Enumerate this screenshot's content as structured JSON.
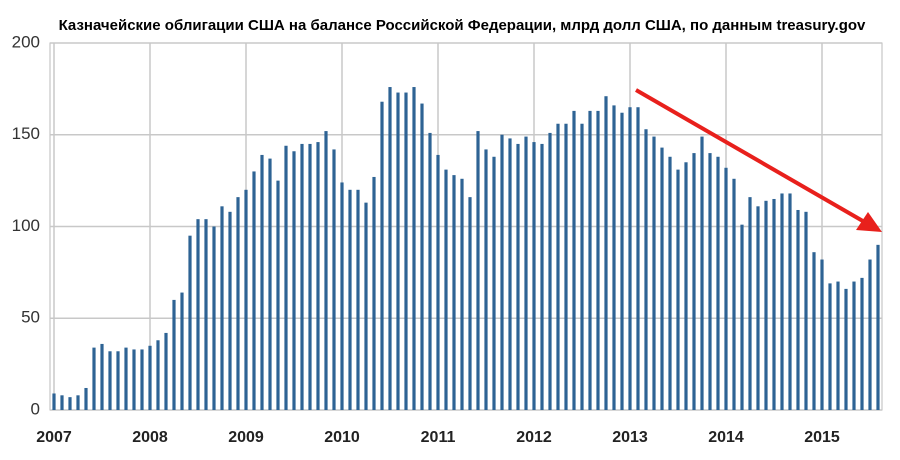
{
  "chart_data": {
    "type": "bar",
    "title": "Казначейские облигации США на балансе Российской Федерации, млрд долл США, по данным treasury.gov",
    "categories": [
      "2007",
      null,
      null,
      null,
      null,
      null,
      null,
      null,
      null,
      null,
      null,
      null,
      "2008",
      null,
      null,
      null,
      null,
      null,
      null,
      null,
      null,
      null,
      null,
      null,
      "2009",
      null,
      null,
      null,
      null,
      null,
      null,
      null,
      null,
      null,
      null,
      null,
      "2010",
      null,
      null,
      null,
      null,
      null,
      null,
      null,
      null,
      null,
      null,
      null,
      "2011",
      null,
      null,
      null,
      null,
      null,
      null,
      null,
      null,
      null,
      null,
      null,
      "2012",
      null,
      null,
      null,
      null,
      null,
      null,
      null,
      null,
      null,
      null,
      null,
      "2013",
      null,
      null,
      null,
      null,
      null,
      null,
      null,
      null,
      null,
      null,
      null,
      "2014",
      null,
      null,
      null,
      null,
      null,
      null,
      null,
      null,
      null,
      null,
      null,
      "2015",
      null,
      null,
      null,
      null,
      null,
      null,
      null
    ],
    "values": [
      9,
      8,
      7,
      8,
      12,
      34,
      36,
      32,
      32,
      34,
      33,
      33,
      35,
      38,
      42,
      60,
      64,
      95,
      104,
      104,
      100,
      111,
      108,
      116,
      120,
      130,
      139,
      137,
      125,
      144,
      141,
      145,
      145,
      146,
      152,
      142,
      124,
      120,
      120,
      113,
      127,
      168,
      176,
      173,
      173,
      176,
      167,
      151,
      139,
      131,
      128,
      126,
      116,
      152,
      142,
      138,
      150,
      148,
      145,
      149,
      146,
      145,
      151,
      156,
      156,
      163,
      156,
      163,
      163,
      171,
      166,
      162,
      165,
      165,
      153,
      149,
      143,
      138,
      131,
      135,
      140,
      149,
      140,
      138,
      132,
      126,
      101,
      116,
      111,
      114,
      115,
      118,
      118,
      109,
      108,
      86,
      82,
      69,
      70,
      66,
      70,
      72,
      82,
      90
    ],
    "color": "#2e6394",
    "ylim": [
      0,
      200
    ],
    "yticks": [
      0,
      50,
      100,
      150,
      200
    ],
    "grid": true
  }
}
